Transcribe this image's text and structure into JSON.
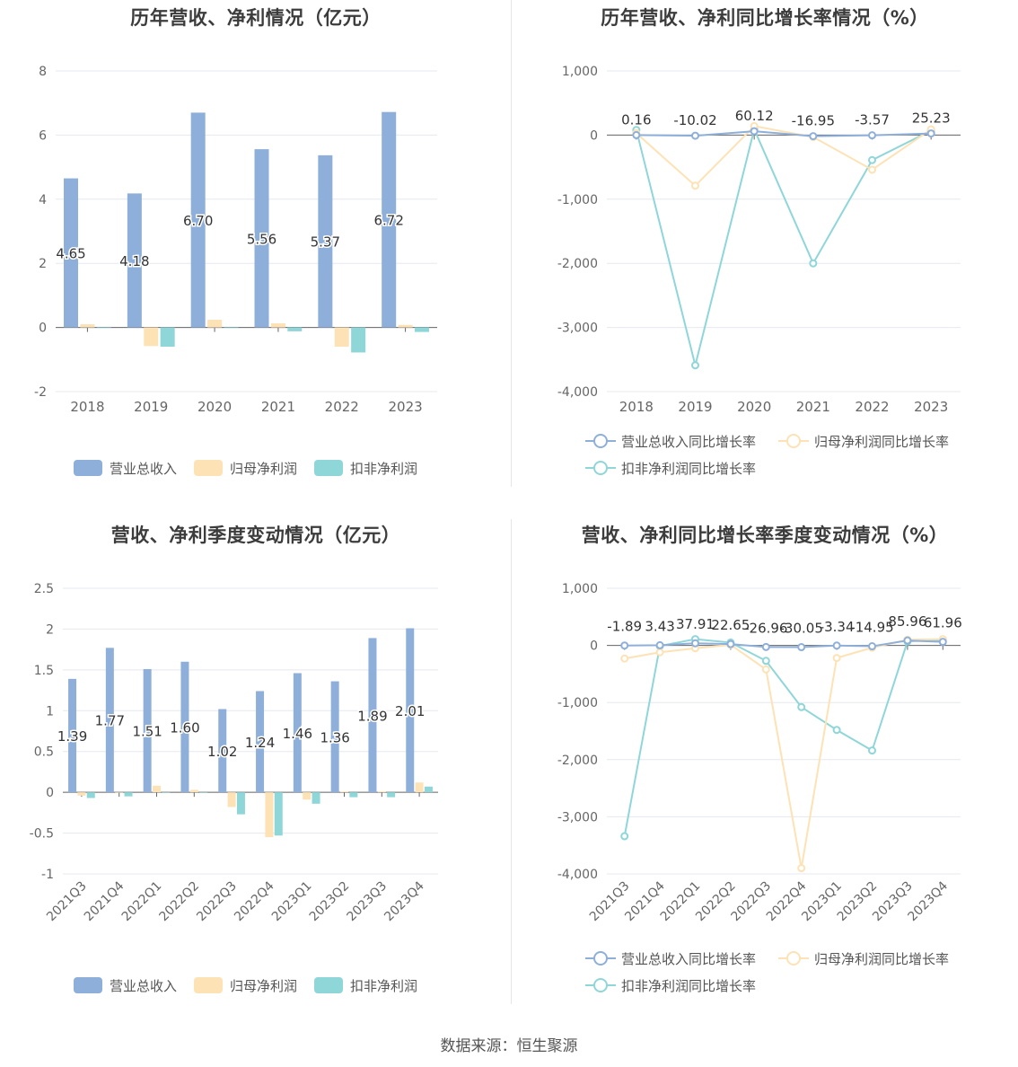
{
  "charts": {
    "annual_amount": {
      "title": "历年营收、净利情况（亿元）",
      "legend": [
        "营业总收入",
        "归母净利润",
        "扣非净利润"
      ]
    },
    "annual_growth": {
      "title": "历年营收、净利同比增长率情况（%）",
      "legend": [
        "营业总收入同比增长率",
        "归母净利润同比增长率",
        "扣非净利润同比增长率"
      ]
    },
    "quarterly_amount": {
      "title": "营收、净利季度变动情况（亿元）",
      "legend": [
        "营业总收入",
        "归母净利润",
        "扣非净利润"
      ]
    },
    "quarterly_growth": {
      "title": "营收、净利同比增长率季度变动情况（%）",
      "legend": [
        "营业总收入同比增长率",
        "归母净利润同比增长率",
        "扣非净利润同比增长率"
      ]
    }
  },
  "colors": {
    "revenue": "#8eafd9",
    "net_profit": "#fde2b5",
    "deducted_profit": "#8fd6d9",
    "grid": "#e6e8f0",
    "axis": "#666666"
  },
  "source": "数据来源：恒生聚源",
  "chart_data": [
    {
      "id": "annual_amount",
      "type": "bar",
      "title": "历年营收、净利情况（亿元）",
      "categories": [
        "2018",
        "2019",
        "2020",
        "2021",
        "2022",
        "2023"
      ],
      "ylim": [
        -2,
        8
      ],
      "yticks": [
        -2,
        0,
        2,
        4,
        6,
        8
      ],
      "series": [
        {
          "name": "营业总收入",
          "values": [
            4.65,
            4.18,
            6.7,
            5.56,
            5.37,
            6.72
          ],
          "labels": [
            "4.65",
            "4.18",
            "6.70",
            "5.56",
            "5.37",
            "6.72"
          ]
        },
        {
          "name": "归母净利润",
          "values": [
            0.1,
            -0.58,
            0.24,
            0.13,
            -0.6,
            0.08
          ]
        },
        {
          "name": "扣非净利润",
          "values": [
            0.02,
            -0.6,
            0.02,
            -0.12,
            -0.78,
            -0.14
          ]
        }
      ],
      "grid": true,
      "legend_position": "bottom"
    },
    {
      "id": "annual_growth",
      "type": "line",
      "title": "历年营收、净利同比增长率情况（%）",
      "categories": [
        "2018",
        "2019",
        "2020",
        "2021",
        "2022",
        "2023"
      ],
      "ylim": [
        -4000,
        1000
      ],
      "yticks": [
        -4000,
        -3000,
        -2000,
        -1000,
        0,
        1000
      ],
      "ytick_labels": [
        "-4,000",
        "-3,000",
        "-2,000",
        "-1,000",
        "0",
        "1,000"
      ],
      "series": [
        {
          "name": "营业总收入同比增长率",
          "values": [
            0.16,
            -10.02,
            60.12,
            -16.95,
            -3.57,
            25.23
          ],
          "labels": [
            "0.16",
            "-10.02",
            "60.12",
            "-16.95",
            "-3.57",
            "25.23"
          ]
        },
        {
          "name": "归母净利润同比增长率",
          "values": [
            30,
            -790,
            140,
            -30,
            -540,
            90
          ]
        },
        {
          "name": "扣非净利润同比增长率",
          "values": [
            80,
            -3590,
            90,
            -2000,
            -390,
            70
          ]
        }
      ],
      "grid": true,
      "legend_position": "bottom"
    },
    {
      "id": "quarterly_amount",
      "type": "bar",
      "title": "营收、净利季度变动情况（亿元）",
      "categories": [
        "2021Q3",
        "2021Q4",
        "2022Q1",
        "2022Q2",
        "2022Q3",
        "2022Q4",
        "2023Q1",
        "2023Q2",
        "2023Q3",
        "2023Q4"
      ],
      "ylim": [
        -1,
        2.5
      ],
      "yticks": [
        -1,
        -0.5,
        0,
        0.5,
        1,
        1.5,
        2,
        2.5
      ],
      "series": [
        {
          "name": "营业总收入",
          "values": [
            1.39,
            1.77,
            1.51,
            1.6,
            1.02,
            1.24,
            1.46,
            1.36,
            1.89,
            2.01
          ],
          "labels": [
            "1.39",
            "1.77",
            "1.51",
            "1.60",
            "1.02",
            "1.24",
            "1.46",
            "1.36",
            "1.89",
            "2.01"
          ]
        },
        {
          "name": "归母净利润",
          "values": [
            -0.04,
            0.0,
            0.08,
            0.03,
            -0.18,
            -0.55,
            -0.09,
            0.01,
            0.01,
            0.12
          ]
        },
        {
          "name": "扣非净利润",
          "values": [
            -0.07,
            -0.05,
            0.0,
            0.0,
            -0.27,
            -0.53,
            -0.14,
            -0.06,
            -0.06,
            0.07
          ]
        }
      ],
      "grid": true,
      "legend_position": "bottom"
    },
    {
      "id": "quarterly_growth",
      "type": "line",
      "title": "营收、净利同比增长率季度变动情况（%）",
      "categories": [
        "2021Q3",
        "2021Q4",
        "2022Q1",
        "2022Q2",
        "2022Q3",
        "2022Q4",
        "2023Q1",
        "2023Q2",
        "2023Q3",
        "2023Q4"
      ],
      "ylim": [
        -4000,
        1000
      ],
      "yticks": [
        -4000,
        -3000,
        -2000,
        -1000,
        0,
        1000
      ],
      "ytick_labels": [
        "-4,000",
        "-3,000",
        "-2,000",
        "-1,000",
        "0",
        "1,000"
      ],
      "series": [
        {
          "name": "营业总收入同比增长率",
          "values": [
            -1.89,
            3.43,
            37.91,
            22.65,
            -26.96,
            -30.05,
            -3.34,
            -14.95,
            85.96,
            61.96
          ],
          "labels": [
            "-1.89",
            "3.43",
            "37.91",
            "22.65",
            "-26.96",
            "-30.05",
            "-3.34",
            "-14.95",
            "85.96",
            "61.96"
          ]
        },
        {
          "name": "归母净利润同比增长率",
          "values": [
            -230,
            -120,
            -50,
            10,
            -420,
            -3900,
            -220,
            -40,
            100,
            110
          ]
        },
        {
          "name": "扣非净利润同比增长率",
          "values": [
            -3340,
            -10,
            110,
            50,
            -270,
            -1080,
            -1480,
            -1840,
            70,
            100
          ]
        }
      ],
      "grid": true,
      "legend_position": "bottom"
    }
  ]
}
